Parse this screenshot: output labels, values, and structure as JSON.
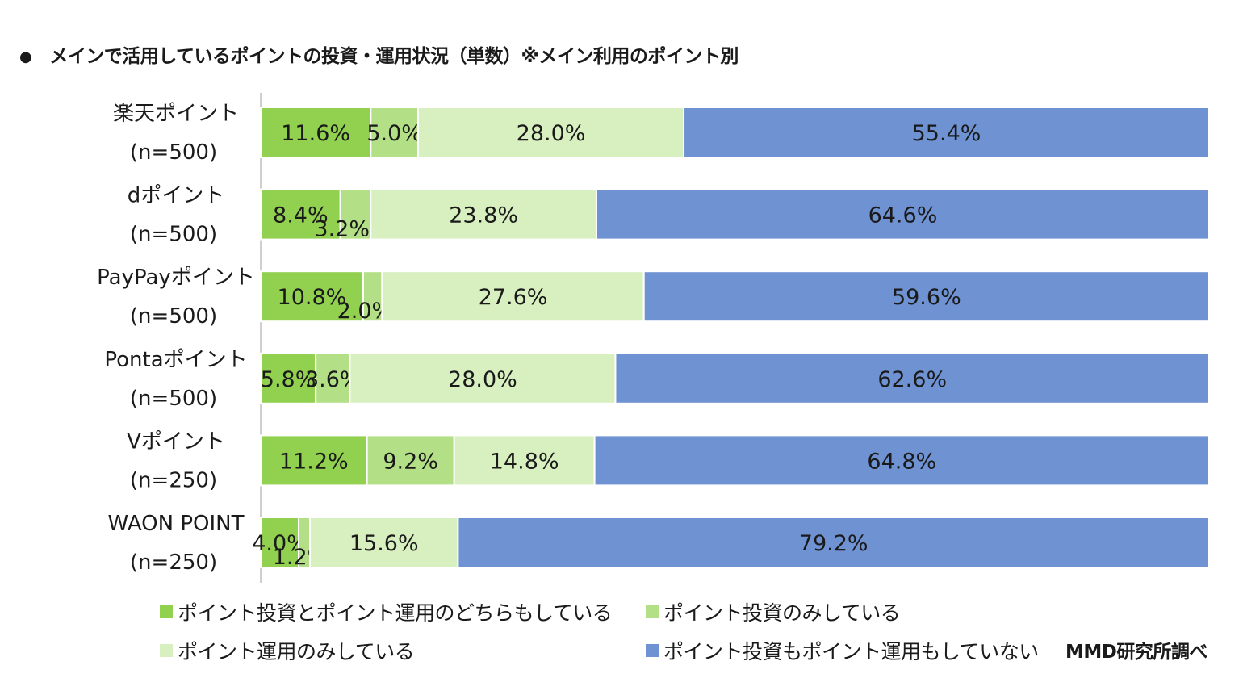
{
  "title": "メインで活用しているポイントの投資・運用状況（単数）※メイン利用のポイント別",
  "title_bullet": "●",
  "credit": "MMD研究所調べ",
  "colors": {
    "both": "#92d050",
    "invest_only": "#b3df86",
    "operate_only": "#d8efc0",
    "neither": "#6f92d3"
  },
  "chart_data": {
    "type": "bar",
    "orientation": "horizontal",
    "stacked": "percent",
    "xlim": [
      0,
      100
    ],
    "grid": false,
    "legend_position": "bottom",
    "categories": [
      {
        "name": "楽天ポイント",
        "n": "(n=500)"
      },
      {
        "name": "dポイント",
        "n": "(n=500)"
      },
      {
        "name": "PayPayポイント",
        "n": "(n=500)"
      },
      {
        "name": "Pontaポイント",
        "n": "(n=500)"
      },
      {
        "name": "Vポイント",
        "n": "(n=250)"
      },
      {
        "name": "WAON POINT",
        "n": "(n=250)"
      }
    ],
    "series": [
      {
        "name": "ポイント投資とポイント運用のどちらもしている",
        "color_key": "both",
        "values": [
          11.6,
          8.4,
          10.8,
          5.8,
          11.2,
          4.0
        ]
      },
      {
        "name": "ポイント投資のみしている",
        "color_key": "invest_only",
        "values": [
          5.0,
          3.2,
          2.0,
          3.6,
          9.2,
          1.2
        ]
      },
      {
        "name": "ポイント運用のみしている",
        "color_key": "operate_only",
        "values": [
          28.0,
          23.8,
          27.6,
          28.0,
          14.8,
          15.6
        ]
      },
      {
        "name": "ポイント投資もポイント運用もしていない",
        "color_key": "neither",
        "values": [
          55.4,
          64.6,
          59.6,
          62.6,
          64.8,
          79.2
        ]
      }
    ]
  }
}
